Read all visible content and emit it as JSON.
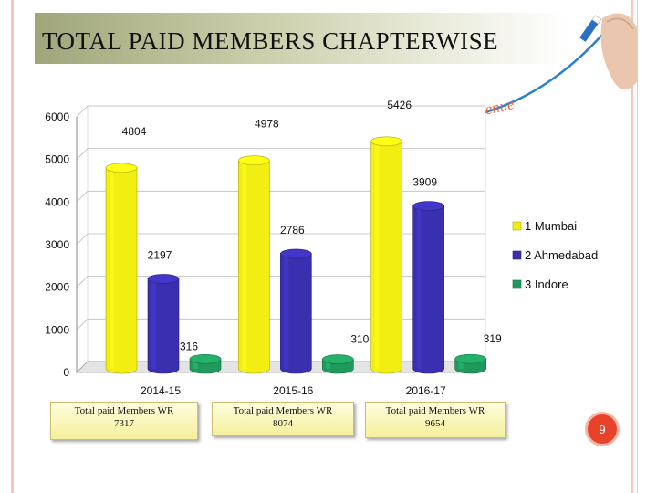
{
  "slide": {
    "title": "TOTAL  PAID  MEMBERS  CHAPTERWISE",
    "watermark_text": "Revenue",
    "page_number": "9"
  },
  "colors": {
    "mumbai": "#f2ee12",
    "ahmedabad": "#3a2fae",
    "indore": "#1f9a5c",
    "accent": "#e8432a"
  },
  "chart_data": {
    "type": "bar",
    "style": "3d-cylinder",
    "categories": [
      "2014-15",
      "2015-16",
      "2016-17"
    ],
    "series": [
      {
        "name": "1 Mumbai",
        "values": [
          4804,
          4978,
          5426
        ]
      },
      {
        "name": "2 Ahmedabad",
        "values": [
          2197,
          2786,
          3909
        ]
      },
      {
        "name": "3 Indore",
        "values": [
          316,
          310,
          319
        ]
      }
    ],
    "ylim": [
      0,
      6000
    ],
    "yticks": [
      0,
      1000,
      2000,
      3000,
      4000,
      5000,
      6000
    ],
    "grid": true,
    "legend": "right"
  },
  "totals": [
    {
      "label": "Total paid Members WR",
      "value": "7317"
    },
    {
      "label": "Total paid Members WR",
      "value": "8074"
    },
    {
      "label": "Total paid Members WR",
      "value": "9654"
    }
  ]
}
